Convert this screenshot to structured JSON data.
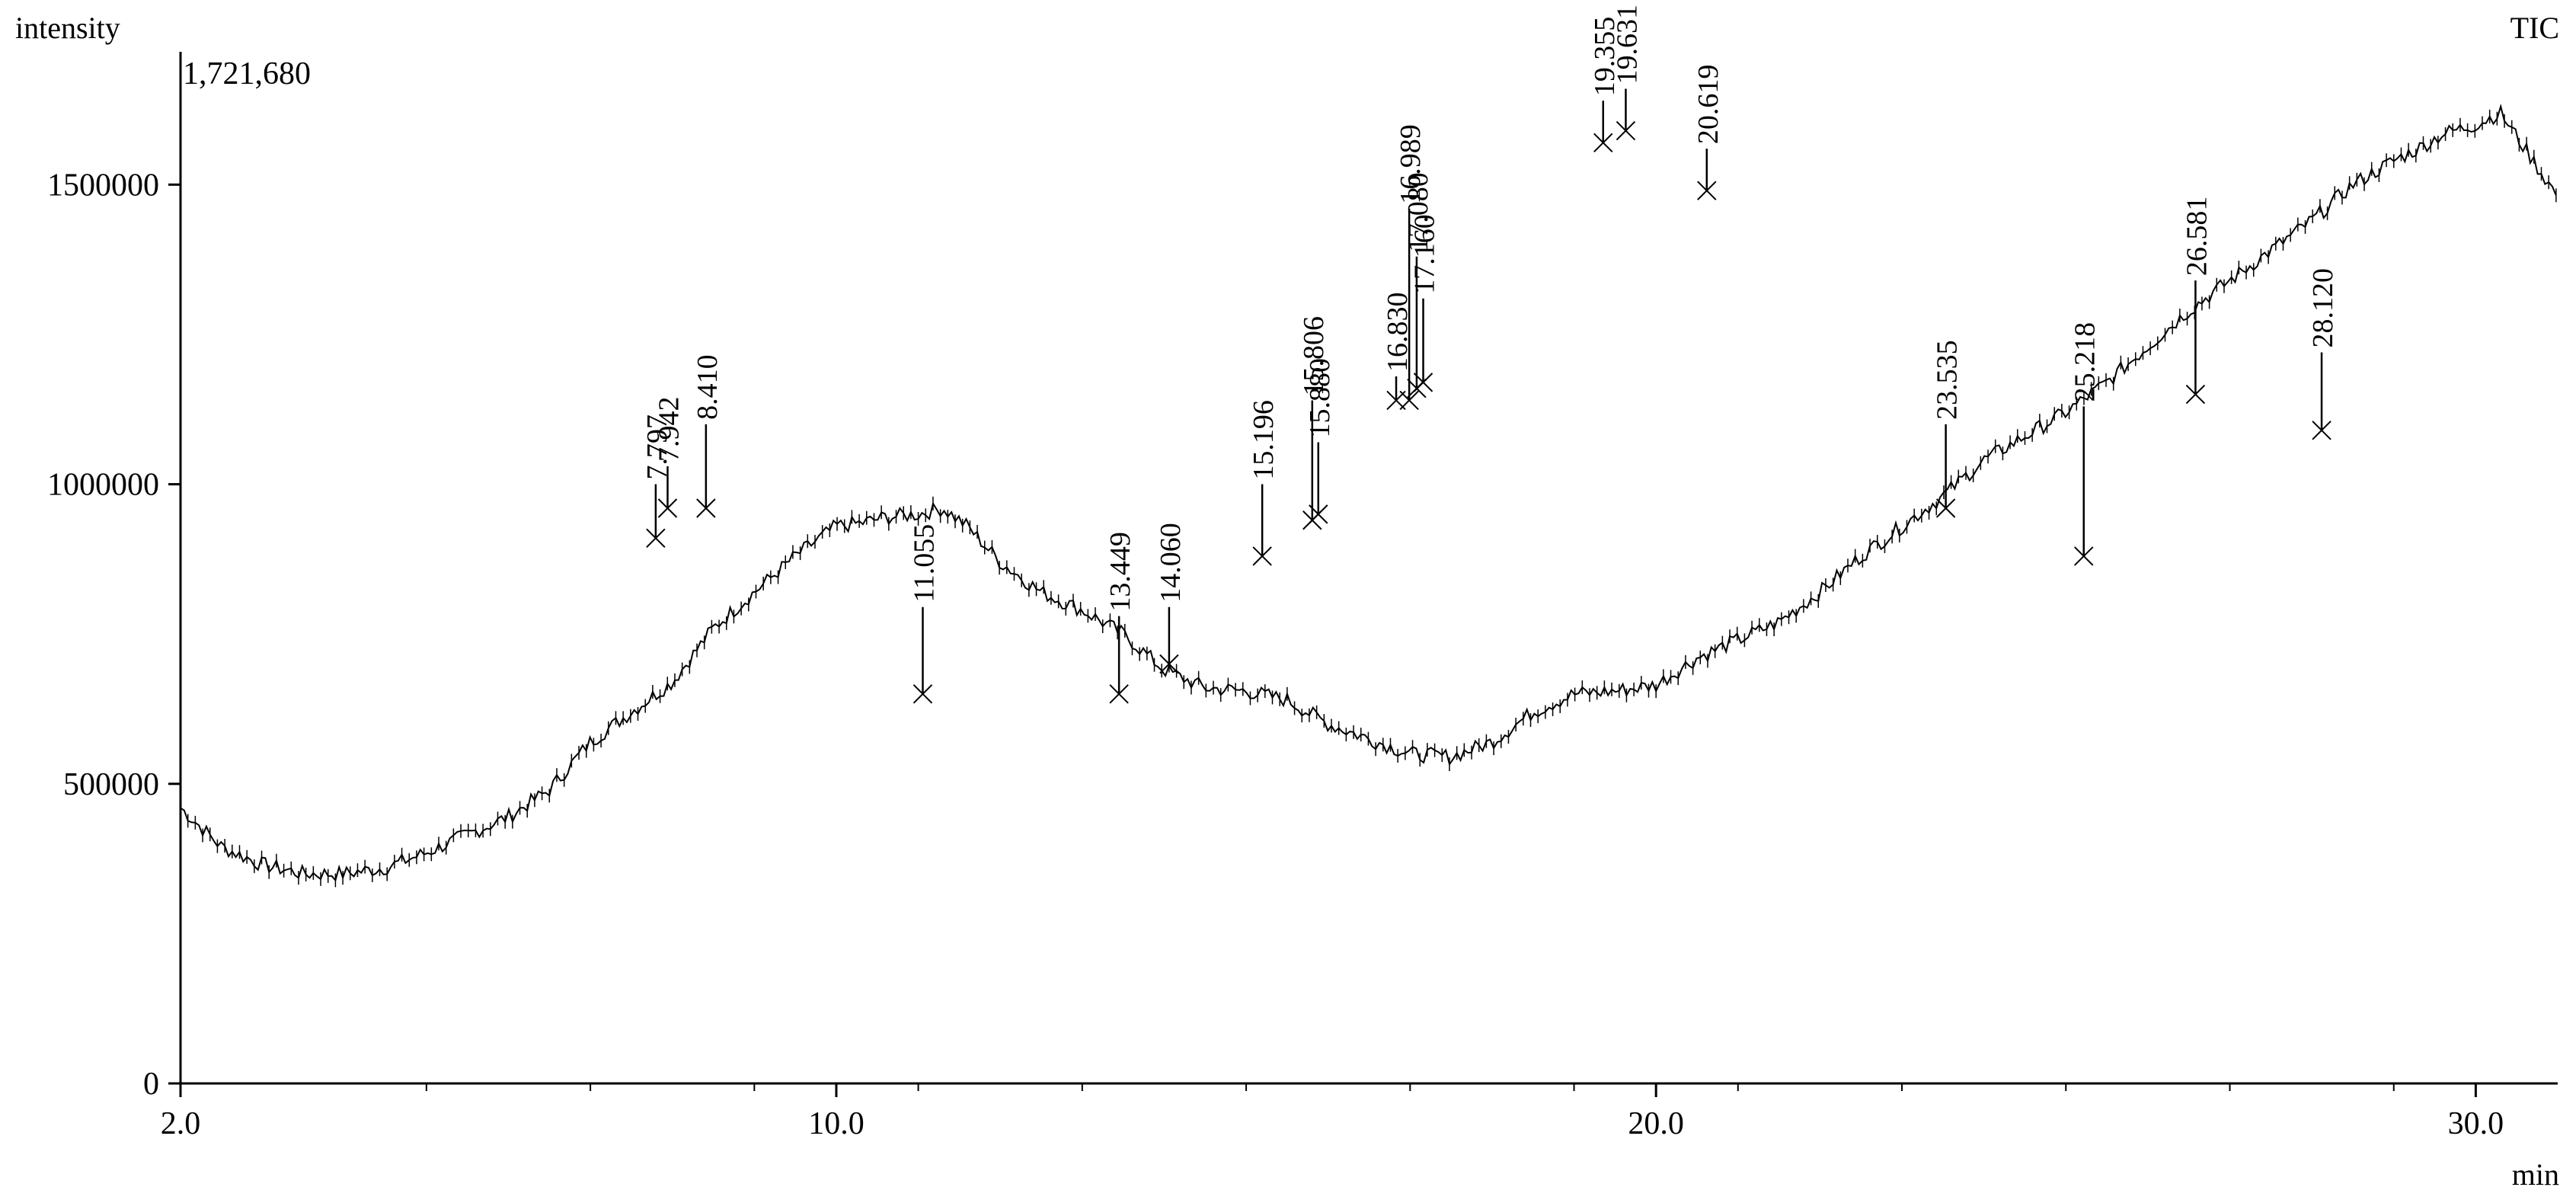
{
  "chart_data": {
    "type": "line",
    "title": "",
    "ylabel": "intensity",
    "xlabel": "min",
    "series_label": "TIC",
    "max_intensity_label": "1,721,680",
    "xlim": [
      2.0,
      31.0
    ],
    "ylim": [
      0,
      1721680
    ],
    "x_ticks": [
      {
        "value": 2.0,
        "label": "2.0"
      },
      {
        "value": 10.0,
        "label": "10.0"
      },
      {
        "value": 20.0,
        "label": "20.0"
      },
      {
        "value": 30.0,
        "label": "30.0"
      }
    ],
    "x_minor_ticks": [
      5,
      7,
      9,
      11,
      13,
      15,
      17,
      19,
      21,
      23,
      25,
      27,
      29
    ],
    "y_ticks": [
      {
        "value": 0,
        "label": "0"
      },
      {
        "value": 500000,
        "label": "500000"
      },
      {
        "value": 1000000,
        "label": "1000000"
      },
      {
        "value": 1500000,
        "label": "1500000"
      }
    ],
    "grid": false,
    "series": [
      {
        "name": "TIC",
        "points": [
          [
            2.0,
            460000
          ],
          [
            2.5,
            395000
          ],
          [
            3.0,
            365000
          ],
          [
            3.5,
            350000
          ],
          [
            4.0,
            350000
          ],
          [
            4.5,
            360000
          ],
          [
            5.0,
            385000
          ],
          [
            5.5,
            415000
          ],
          [
            6.0,
            445000
          ],
          [
            6.5,
            490000
          ],
          [
            7.0,
            570000
          ],
          [
            7.5,
            620000
          ],
          [
            8.0,
            670000
          ],
          [
            8.5,
            760000
          ],
          [
            9.0,
            820000
          ],
          [
            9.5,
            880000
          ],
          [
            10.0,
            930000
          ],
          [
            10.3,
            935000
          ],
          [
            10.6,
            945000
          ],
          [
            11.0,
            950000
          ],
          [
            11.3,
            960000
          ],
          [
            11.6,
            930000
          ],
          [
            12.0,
            870000
          ],
          [
            12.5,
            820000
          ],
          [
            13.0,
            790000
          ],
          [
            13.5,
            750000
          ],
          [
            14.0,
            690000
          ],
          [
            14.5,
            660000
          ],
          [
            15.0,
            655000
          ],
          [
            15.5,
            640000
          ],
          [
            16.0,
            600000
          ],
          [
            16.5,
            575000
          ],
          [
            17.0,
            550000
          ],
          [
            17.5,
            545000
          ],
          [
            18.0,
            570000
          ],
          [
            18.5,
            620000
          ],
          [
            19.0,
            650000
          ],
          [
            19.5,
            655000
          ],
          [
            20.0,
            665000
          ],
          [
            20.5,
            710000
          ],
          [
            21.0,
            740000
          ],
          [
            21.5,
            770000
          ],
          [
            22.0,
            820000
          ],
          [
            22.5,
            880000
          ],
          [
            23.0,
            930000
          ],
          [
            23.5,
            980000
          ],
          [
            24.0,
            1040000
          ],
          [
            24.5,
            1080000
          ],
          [
            25.0,
            1120000
          ],
          [
            25.5,
            1170000
          ],
          [
            26.0,
            1230000
          ],
          [
            26.5,
            1290000
          ],
          [
            27.0,
            1340000
          ],
          [
            27.5,
            1390000
          ],
          [
            28.0,
            1440000
          ],
          [
            28.5,
            1500000
          ],
          [
            29.0,
            1540000
          ],
          [
            29.3,
            1560000
          ],
          [
            29.6,
            1585000
          ],
          [
            30.0,
            1600000
          ],
          [
            30.3,
            1620000
          ],
          [
            30.6,
            1560000
          ],
          [
            31.0,
            1480000
          ]
        ]
      }
    ],
    "peaks": [
      {
        "label": "7.797",
        "x": 7.797,
        "y": 910000,
        "apex": 1000000
      },
      {
        "label": "7.942",
        "x": 7.942,
        "y": 960000,
        "apex": 1030000
      },
      {
        "label": "8.410",
        "x": 8.41,
        "y": 960000,
        "apex": 1100000
      },
      {
        "label": "11.055",
        "x": 11.055,
        "y": 650000,
        "apex": 795000
      },
      {
        "label": "13.449",
        "x": 13.449,
        "y": 650000,
        "apex": 780000
      },
      {
        "label": "14.060",
        "x": 14.06,
        "y": 700000,
        "apex": 795000
      },
      {
        "label": "15.196",
        "x": 15.196,
        "y": 880000,
        "apex": 1000000
      },
      {
        "label": "15.880",
        "x": 15.88,
        "y": 950000,
        "apex": 1070000
      },
      {
        "label": "16.830",
        "x": 16.83,
        "y": 1140000,
        "apex": 1180000
      },
      {
        "label": "15.806",
        "x": 15.806,
        "y": 940000,
        "apex": 1140000
      },
      {
        "label": "16.989",
        "x": 16.989,
        "y": 1140000,
        "apex": 1460000
      },
      {
        "label": "17.080",
        "x": 17.08,
        "y": 1160000,
        "apex": 1380000
      },
      {
        "label": "17.160",
        "x": 17.16,
        "y": 1170000,
        "apex": 1310000
      },
      {
        "label": "19.355",
        "x": 19.355,
        "y": 1570000,
        "apex": 1640000
      },
      {
        "label": "19.631",
        "x": 19.631,
        "y": 1590000,
        "apex": 1660000
      },
      {
        "label": "20.619",
        "x": 20.619,
        "y": 1490000,
        "apex": 1560000
      },
      {
        "label": "23.535",
        "x": 23.535,
        "y": 960000,
        "apex": 1100000
      },
      {
        "label": "25.218",
        "x": 25.218,
        "y": 880000,
        "apex": 1130000
      },
      {
        "label": "26.581",
        "x": 26.581,
        "y": 1150000,
        "apex": 1340000
      },
      {
        "label": "28.120",
        "x": 28.12,
        "y": 1090000,
        "apex": 1220000
      }
    ],
    "colors": {
      "line": "#000000",
      "axis": "#000000",
      "background": "#ffffff"
    }
  }
}
